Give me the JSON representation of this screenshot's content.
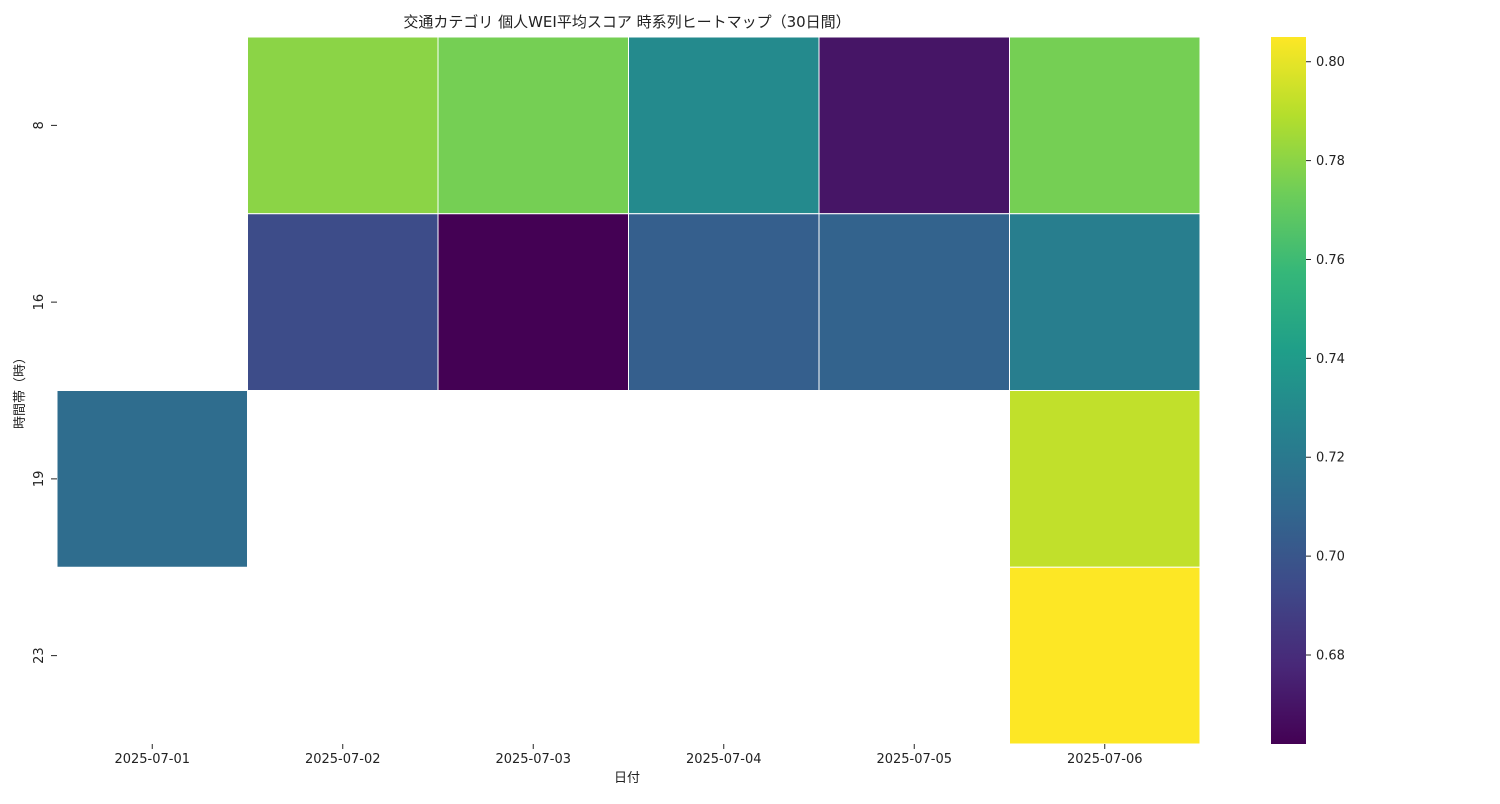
{
  "chart_data": {
    "type": "heatmap",
    "title": "交通カテゴリ 個人WEI平均スコア 時系列ヒートマップ（30日間）",
    "xlabel": "日付",
    "ylabel": "時間帯（時）",
    "x_categories": [
      "2025-07-01",
      "2025-07-02",
      "2025-07-03",
      "2025-07-04",
      "2025-07-05",
      "2025-07-06"
    ],
    "y_categories": [
      "8",
      "16",
      "19",
      "23"
    ],
    "values": [
      [
        null,
        0.78,
        0.775,
        0.73,
        0.67,
        0.775
      ],
      [
        null,
        0.695,
        0.662,
        0.705,
        0.707,
        0.723
      ],
      [
        0.713,
        null,
        null,
        null,
        null,
        0.792
      ],
      [
        null,
        null,
        null,
        null,
        null,
        0.805
      ]
    ],
    "colormap": "viridis",
    "color_range": [
      0.662,
      0.805
    ],
    "colorbar_ticks": [
      "0.68",
      "0.70",
      "0.72",
      "0.74",
      "0.76",
      "0.78",
      "0.80"
    ],
    "grid": false,
    "colorbar_position": "right"
  }
}
